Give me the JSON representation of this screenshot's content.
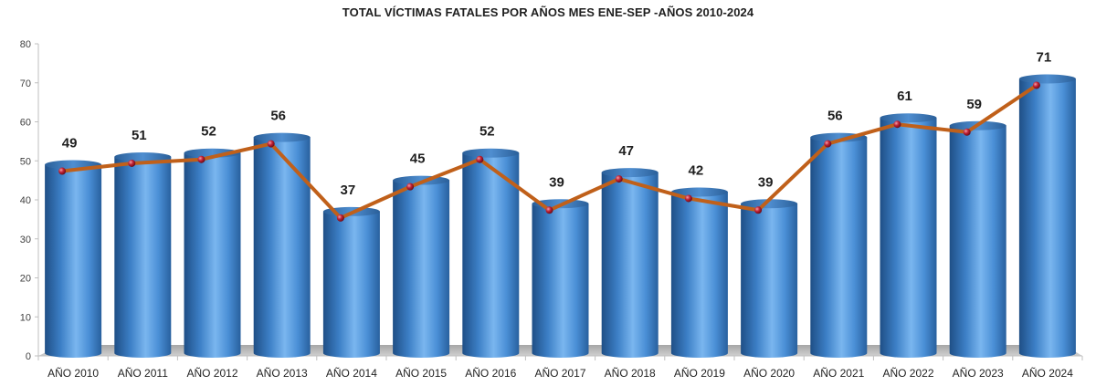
{
  "chart_data": {
    "type": "bar",
    "title": "TOTAL VÍCTIMAS FATALES  POR AÑOS MES ENE-SEP -AÑOS 2010-2024",
    "xlabel": "",
    "ylabel": "",
    "ylim": [
      0,
      80
    ],
    "yticks": [
      0,
      10,
      20,
      30,
      40,
      50,
      60,
      70,
      80
    ],
    "grid": false,
    "legend": "none",
    "categories": [
      "AÑO 2010",
      "AÑO 2011",
      "AÑO 2012",
      "AÑO 2013",
      "AÑO 2014",
      "AÑO 2015",
      "AÑO 2016",
      "AÑO 2017",
      "AÑO 2018",
      "AÑO 2019",
      "AÑO 2020",
      "AÑO 2021",
      "AÑO 2022",
      "AÑO 2023",
      "AÑO 2024"
    ],
    "series": [
      {
        "type": "bar",
        "values": [
          49,
          51,
          52,
          56,
          37,
          45,
          52,
          39,
          47,
          42,
          39,
          56,
          61,
          59,
          71
        ],
        "data_labels": [
          "49",
          "51",
          "52",
          "56",
          "37",
          "45",
          "52",
          "39",
          "47",
          "42",
          "39",
          "56",
          "61",
          "59",
          "71"
        ],
        "color": "#4a8fd6"
      },
      {
        "type": "line",
        "values": [
          49,
          51,
          52,
          56,
          37,
          45,
          52,
          39,
          47,
          42,
          39,
          56,
          61,
          59,
          71
        ],
        "color": "#c0601a",
        "marker_color": "#b3182a"
      }
    ]
  }
}
